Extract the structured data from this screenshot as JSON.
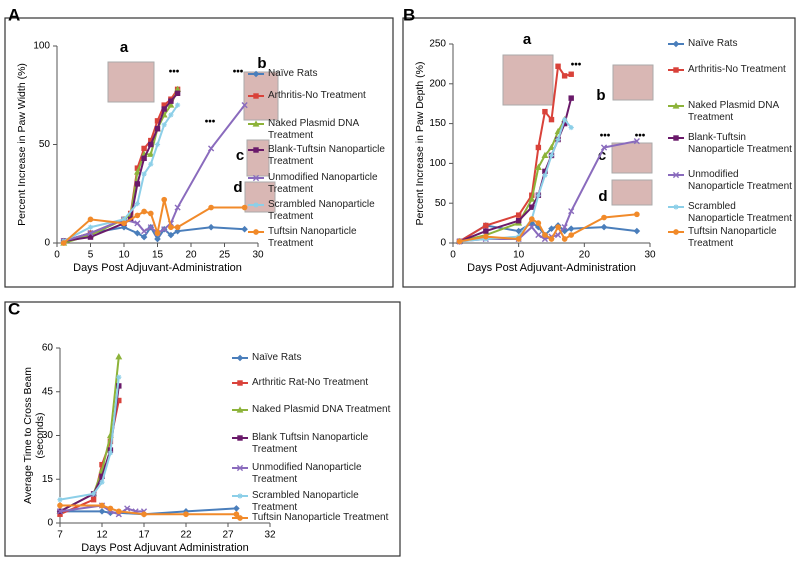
{
  "chart_data": [
    {
      "type": "line",
      "panel": "A",
      "xlabel": "Days Post Adjuvant-Administration",
      "ylabel": [
        "Percent Increase in Paw Width (%)"
      ],
      "xlim": [
        0,
        30
      ],
      "xticks": [
        0,
        5,
        10,
        15,
        20,
        25,
        30
      ],
      "ylim": [
        0,
        100
      ],
      "yticks": [
        0,
        50,
        100
      ],
      "annotations": [
        "a",
        "b",
        "c",
        "d",
        "•••",
        "•••",
        "•••"
      ],
      "series": [
        {
          "name": "Naïve Rats",
          "color": "#4a7ebb",
          "marker": "diamond",
          "x": [
            1,
            5,
            10,
            12,
            13,
            14,
            15,
            16,
            17,
            18,
            23,
            28
          ],
          "values": [
            1,
            5,
            8,
            5,
            3,
            8,
            2,
            7,
            4,
            6,
            8,
            7
          ]
        },
        {
          "name": "Arthritis-No Treatment",
          "color": "#d9423a",
          "marker": "square",
          "x": [
            1,
            5,
            10,
            11,
            12,
            13,
            14,
            15,
            16,
            17,
            18
          ],
          "values": [
            1,
            5,
            12,
            15,
            38,
            48,
            52,
            62,
            70,
            73,
            78
          ]
        },
        {
          "name": "Naked Plasmid DNA Treatment",
          "color": "#8db33a",
          "marker": "triangle",
          "x": [
            1,
            5,
            10,
            11,
            12,
            13,
            14,
            15,
            16,
            17,
            18
          ],
          "values": [
            0,
            4,
            12,
            14,
            36,
            45,
            45,
            58,
            65,
            70,
            78
          ]
        },
        {
          "name": "Blank-Tuftsin Nanoparticle Treatment",
          "color": "#6a1a6a",
          "marker": "square",
          "x": [
            1,
            5,
            10,
            11,
            12,
            13,
            14,
            15,
            16,
            17,
            18
          ],
          "values": [
            1,
            3,
            10,
            12,
            30,
            43,
            50,
            58,
            68,
            72,
            76
          ]
        },
        {
          "name": "Unmodified Nanoparticle Treatment",
          "color": "#8a6bbd",
          "marker": "x",
          "x": [
            1,
            5,
            10,
            12,
            13,
            14,
            15,
            16,
            17,
            18,
            23,
            28
          ],
          "values": [
            1,
            5,
            12,
            10,
            6,
            8,
            5,
            7,
            10,
            18,
            48,
            70
          ]
        },
        {
          "name": "Scrambled Nanoparticle Treatment",
          "color": "#8ccfe8",
          "marker": "star",
          "x": [
            1,
            5,
            10,
            12,
            13,
            14,
            15,
            16,
            17,
            18
          ],
          "values": [
            1,
            8,
            12,
            20,
            35,
            40,
            50,
            60,
            65,
            70
          ]
        },
        {
          "name": "Tuftsin Nanoparticle Treatment",
          "color": "#f18a2a",
          "marker": "circle",
          "x": [
            1,
            5,
            10,
            12,
            13,
            14,
            15,
            16,
            17,
            18,
            23,
            28
          ],
          "values": [
            0,
            12,
            10,
            14,
            16,
            15,
            5,
            22,
            8,
            8,
            18,
            18
          ]
        }
      ]
    },
    {
      "type": "line",
      "panel": "B",
      "xlabel": "Days Post Adjuvant-Administration",
      "ylabel": [
        "Percent Increase in Paw Depth (%)"
      ],
      "xlim": [
        0,
        30
      ],
      "xticks": [
        0,
        10,
        20,
        30
      ],
      "ylim": [
        0,
        250
      ],
      "yticks": [
        0,
        50,
        100,
        150,
        200,
        250
      ],
      "annotations": [
        "a",
        "b",
        "c",
        "d",
        "•••",
        "•••",
        "•••"
      ],
      "series": [
        {
          "name": "Naïve Rats",
          "color": "#4a7ebb",
          "marker": "diamond",
          "x": [
            1,
            5,
            10,
            12,
            13,
            14,
            15,
            16,
            17,
            18,
            23,
            28
          ],
          "values": [
            2,
            22,
            15,
            25,
            20,
            10,
            18,
            22,
            15,
            18,
            20,
            15
          ]
        },
        {
          "name": "Arthritis-No Treatment",
          "color": "#d9423a",
          "marker": "square",
          "x": [
            1,
            5,
            10,
            12,
            13,
            14,
            15,
            16,
            17,
            18
          ],
          "values": [
            2,
            22,
            35,
            60,
            120,
            165,
            155,
            222,
            210,
            212
          ]
        },
        {
          "name": "Naked Plasmid DNA Treatment",
          "color": "#8db33a",
          "marker": "triangle",
          "x": [
            1,
            5,
            10,
            12,
            13,
            14,
            15,
            16,
            17
          ],
          "values": [
            2,
            10,
            25,
            55,
            95,
            110,
            120,
            140,
            155
          ]
        },
        {
          "name": "Blank-Tuftsin Nanoparticle Treatment",
          "color": "#6a1a6a",
          "marker": "square",
          "x": [
            1,
            5,
            10,
            12,
            13,
            14,
            15,
            16,
            17,
            18
          ],
          "values": [
            2,
            15,
            28,
            45,
            60,
            90,
            110,
            130,
            150,
            182
          ]
        },
        {
          "name": "Unmodified Nanoparticle Treatment",
          "color": "#8a6bbd",
          "marker": "x",
          "x": [
            1,
            5,
            10,
            12,
            13,
            14,
            15,
            16,
            17,
            18,
            23,
            28
          ],
          "values": [
            2,
            5,
            5,
            20,
            10,
            5,
            8,
            10,
            20,
            40,
            120,
            128
          ]
        },
        {
          "name": "Scrambled Nanoparticle Treatment",
          "color": "#8ccfe8",
          "marker": "star",
          "x": [
            1,
            5,
            10,
            12,
            13,
            14,
            15,
            16,
            17,
            18
          ],
          "values": [
            2,
            5,
            8,
            30,
            60,
            85,
            110,
            130,
            155,
            145
          ]
        },
        {
          "name": "Tuftsin Nanoparticle Treatment",
          "color": "#f18a2a",
          "marker": "circle",
          "x": [
            1,
            5,
            10,
            12,
            13,
            14,
            15,
            16,
            17,
            18,
            23,
            28
          ],
          "values": [
            2,
            8,
            5,
            30,
            25,
            10,
            5,
            20,
            5,
            10,
            32,
            36
          ]
        }
      ]
    },
    {
      "type": "line",
      "panel": "C",
      "xlabel": "Days Post Adjuvant Administration",
      "ylabel": [
        "Average Time to Cross Beam",
        "(seconds)"
      ],
      "xlim": [
        7,
        32
      ],
      "xticks": [
        7,
        12,
        17,
        22,
        27,
        32
      ],
      "ylim": [
        0,
        60
      ],
      "yticks": [
        0,
        15,
        30,
        45,
        60
      ],
      "annotations": [],
      "series": [
        {
          "name": "Naïve Rats",
          "color": "#4a7ebb",
          "marker": "diamond",
          "x": [
            7,
            12,
            13,
            14,
            17,
            22,
            28
          ],
          "values": [
            4,
            4,
            3.5,
            3.5,
            3,
            4,
            5
          ]
        },
        {
          "name": "Arthritic Rat-No Treatment",
          "color": "#d9423a",
          "marker": "square",
          "x": [
            7,
            11,
            12,
            13,
            14
          ],
          "values": [
            3,
            8,
            20,
            28,
            42
          ]
        },
        {
          "name": "Naked Plasmid DNA Treatment",
          "color": "#8db33a",
          "marker": "triangle",
          "x": [
            7,
            11,
            12,
            13,
            14
          ],
          "values": [
            4,
            10,
            18,
            30,
            57
          ]
        },
        {
          "name": "Blank Tuftsin Nanoparticle Treatment",
          "color": "#6a1a6a",
          "marker": "square",
          "x": [
            7,
            11,
            12,
            13,
            14
          ],
          "values": [
            4,
            10,
            16,
            25,
            47
          ]
        },
        {
          "name": "Unmodified Nanoparticle Treatment",
          "color": "#8a6bbd",
          "marker": "x",
          "x": [
            7,
            12,
            13,
            14,
            15,
            16,
            17
          ],
          "values": [
            4,
            6,
            4,
            3,
            5,
            4,
            4
          ]
        },
        {
          "name": "Scrambled Nanoparticle Treatment",
          "color": "#8ccfe8",
          "marker": "star",
          "x": [
            7,
            11,
            12,
            13,
            14
          ],
          "values": [
            8,
            10,
            14,
            24,
            50
          ]
        },
        {
          "name": "Tuftsin Nanoparticle Treatment",
          "color": "#f18a2a",
          "marker": "circle",
          "x": [
            7,
            12,
            13,
            14,
            17,
            22,
            28
          ],
          "values": [
            6,
            6,
            5,
            4,
            3,
            3,
            3
          ]
        }
      ]
    }
  ]
}
